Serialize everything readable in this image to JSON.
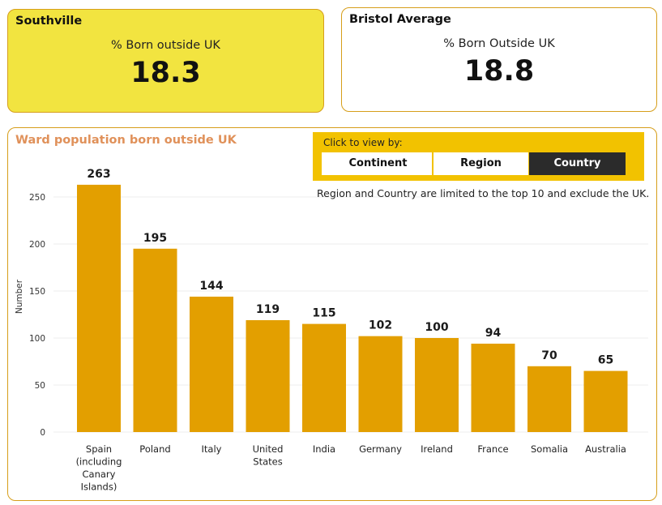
{
  "kpi_local": {
    "title": "Southville",
    "label": "% Born outside UK",
    "value": "18.3"
  },
  "kpi_avg": {
    "title": "Bristol Average",
    "label": "% Born Outside UK",
    "value": "18.8"
  },
  "chart_panel": {
    "title": "Ward population born outside UK",
    "toggle_caption": "Click to view by:",
    "buttons": [
      "Continent",
      "Region",
      "Country"
    ],
    "active_button": "Country",
    "note": "Region and Country are limited to the top 10 and exclude the UK."
  },
  "colors": {
    "bar": "#e39f00",
    "kpi_highlight": "#f2e440",
    "toggle_bg": "#f2c200",
    "active_button": "#2b2b2b",
    "title_accent": "#e0915a"
  },
  "chart_data": {
    "type": "bar",
    "categories": [
      "Spain (including Canary Islands)",
      "Poland",
      "Italy",
      "United States",
      "India",
      "Germany",
      "Ireland",
      "France",
      "Somalia",
      "Australia"
    ],
    "category_lines": [
      [
        "Spain",
        "(including",
        "Canary",
        "Islands)"
      ],
      [
        "Poland"
      ],
      [
        "Italy"
      ],
      [
        "United",
        "States"
      ],
      [
        "India"
      ],
      [
        "Germany"
      ],
      [
        "Ireland"
      ],
      [
        "France"
      ],
      [
        "Somalia"
      ],
      [
        "Australia"
      ]
    ],
    "values": [
      263,
      195,
      144,
      119,
      115,
      102,
      100,
      94,
      70,
      65
    ],
    "ylabel": "Number",
    "xlabel": "",
    "ylim": [
      0,
      275
    ],
    "yticks": [
      0,
      50,
      100,
      150,
      200,
      250
    ],
    "grid": true
  }
}
